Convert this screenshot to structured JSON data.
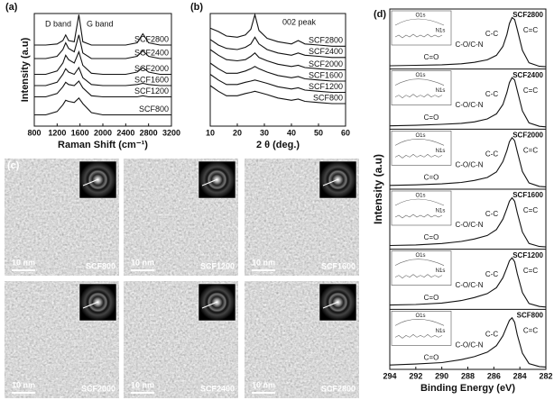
{
  "chart_data": [
    {
      "type": "line",
      "panel_label": "(a)",
      "xlabel": "Raman Shift (cm⁻¹)",
      "ylabel": "Intensity (a.u)",
      "xlim": [
        800,
        3200
      ],
      "xticks": [
        800,
        1200,
        1600,
        2000,
        2400,
        2800,
        3200
      ],
      "ylim": [
        0,
        10
      ],
      "color": "#111111",
      "annotations": [
        "D band",
        "G band"
      ],
      "x": [
        800,
        1000,
        1200,
        1300,
        1350,
        1400,
        1500,
        1580,
        1650,
        1800,
        2000,
        2400,
        2600,
        2700,
        2800,
        3000,
        3200
      ],
      "series": [
        {
          "name": "SCF2800",
          "values": [
            7.2,
            7.2,
            7.3,
            7.6,
            8.1,
            7.6,
            7.5,
            9.9,
            7.5,
            7.2,
            7.2,
            7.2,
            7.4,
            8.2,
            7.4,
            7.2,
            7.2
          ]
        },
        {
          "name": "SCF2400",
          "values": [
            6.0,
            6.0,
            6.2,
            6.8,
            7.4,
            6.9,
            6.6,
            8.1,
            6.5,
            6.0,
            6.0,
            6.0,
            6.2,
            6.7,
            6.2,
            6.0,
            6.0
          ]
        },
        {
          "name": "SCF2000",
          "values": [
            4.6,
            4.6,
            4.9,
            5.6,
            6.3,
            5.9,
            5.6,
            6.6,
            5.4,
            4.7,
            4.6,
            4.6,
            4.8,
            5.2,
            4.8,
            4.6,
            4.6
          ]
        },
        {
          "name": "SCF1600",
          "values": [
            3.6,
            3.6,
            3.9,
            4.6,
            5.1,
            4.8,
            4.6,
            5.2,
            4.3,
            3.7,
            3.6,
            3.6,
            3.7,
            3.8,
            3.7,
            3.6,
            3.6
          ]
        },
        {
          "name": "SCF1200",
          "values": [
            2.6,
            2.6,
            2.9,
            3.5,
            3.9,
            3.7,
            3.6,
            4.0,
            3.4,
            2.7,
            2.6,
            2.6,
            2.6,
            2.7,
            2.6,
            2.6,
            2.6
          ]
        },
        {
          "name": "SCF800",
          "values": [
            1.0,
            1.0,
            1.3,
            1.9,
            2.3,
            2.2,
            2.1,
            2.5,
            2.0,
            1.2,
            1.0,
            1.0,
            1.0,
            1.0,
            1.0,
            1.0,
            1.0
          ]
        }
      ]
    },
    {
      "type": "line",
      "panel_label": "(b)",
      "xlabel": "2 θ (deg.)",
      "xlim": [
        10,
        60
      ],
      "xticks": [
        10,
        20,
        30,
        40,
        50,
        60
      ],
      "ylim": [
        0,
        10
      ],
      "color": "#111111",
      "annotations": [
        "002 peak"
      ],
      "x": [
        10,
        13,
        16,
        20,
        23,
        25,
        26.5,
        28,
        31,
        35,
        40,
        42.5,
        45,
        50,
        55,
        60
      ],
      "series": [
        {
          "name": "SCF2800",
          "values": [
            8.7,
            8.4,
            8.0,
            7.9,
            8.1,
            8.6,
            9.9,
            8.5,
            7.8,
            7.5,
            7.3,
            7.6,
            7.3,
            7.2,
            7.1,
            7.1
          ]
        },
        {
          "name": "SCF2400",
          "values": [
            7.7,
            7.2,
            6.9,
            6.8,
            7.0,
            7.3,
            7.9,
            7.3,
            6.8,
            6.5,
            6.3,
            6.5,
            6.3,
            6.2,
            6.1,
            6.1
          ]
        },
        {
          "name": "SCF2000",
          "values": [
            6.8,
            6.3,
            5.9,
            5.8,
            5.9,
            6.2,
            6.5,
            6.1,
            5.8,
            5.5,
            5.3,
            5.4,
            5.2,
            5.1,
            5.0,
            5.0
          ]
        },
        {
          "name": "SCF1600",
          "values": [
            5.6,
            5.1,
            4.7,
            4.7,
            4.9,
            5.1,
            5.3,
            5.1,
            4.8,
            4.5,
            4.3,
            4.4,
            4.2,
            4.1,
            4.0,
            4.0
          ]
        },
        {
          "name": "SCF1200",
          "values": [
            4.6,
            4.1,
            3.7,
            3.7,
            3.9,
            4.0,
            4.1,
            4.0,
            3.8,
            3.5,
            3.3,
            3.4,
            3.2,
            3.1,
            3.0,
            3.0
          ]
        },
        {
          "name": "SCF800",
          "values": [
            3.6,
            3.1,
            2.7,
            2.7,
            2.9,
            3.0,
            3.1,
            3.0,
            2.8,
            2.5,
            2.3,
            2.4,
            2.2,
            2.1,
            2.0,
            2.0
          ]
        }
      ]
    },
    {
      "type": "xps",
      "panel_label": "(d)",
      "xlabel": "Binding Energy (eV)",
      "ylabel": "Intensity (a.u)",
      "xlim": [
        294,
        282
      ],
      "xticks": [
        294,
        292,
        290,
        288,
        286,
        284,
        282
      ],
      "ylim": [
        0,
        1.1
      ],
      "color": "#111111",
      "x": [
        294,
        292,
        290,
        288.5,
        287.5,
        286.5,
        285.8,
        285.3,
        285,
        284.8,
        284.6,
        284.4,
        284.2,
        283.8,
        283.3,
        282.5,
        282
      ],
      "panels": [
        {
          "name": "SCF2800",
          "peak_labels": [
            "C=C",
            "C-C",
            "C-O/C-N",
            "C=O"
          ],
          "inset_labels": [
            "O1s",
            "N1s"
          ],
          "values": [
            0.03,
            0.04,
            0.05,
            0.07,
            0.1,
            0.15,
            0.24,
            0.42,
            0.66,
            0.88,
            1.0,
            0.96,
            0.76,
            0.34,
            0.09,
            0.02,
            0.01
          ]
        },
        {
          "name": "SCF2400",
          "peak_labels": [
            "C=C",
            "C-C",
            "C-O/C-N",
            "C=O"
          ],
          "inset_labels": [
            "O1s",
            "N1s"
          ],
          "values": [
            0.03,
            0.04,
            0.06,
            0.08,
            0.11,
            0.17,
            0.27,
            0.46,
            0.7,
            0.9,
            1.0,
            0.95,
            0.74,
            0.33,
            0.09,
            0.02,
            0.01
          ]
        },
        {
          "name": "SCF2000",
          "peak_labels": [
            "C=C",
            "C-C",
            "C-O/C-N",
            "C=O"
          ],
          "inset_labels": [
            "O1s",
            "N1s"
          ],
          "values": [
            0.04,
            0.05,
            0.07,
            0.1,
            0.14,
            0.2,
            0.31,
            0.52,
            0.74,
            0.92,
            1.0,
            0.94,
            0.72,
            0.32,
            0.09,
            0.02,
            0.01
          ]
        },
        {
          "name": "SCF1600",
          "peak_labels": [
            "C=C",
            "C-C",
            "C-O/C-N",
            "C=O"
          ],
          "inset_labels": [
            "O1s",
            "N1s"
          ],
          "values": [
            0.04,
            0.05,
            0.08,
            0.12,
            0.17,
            0.24,
            0.36,
            0.57,
            0.78,
            0.93,
            1.0,
            0.93,
            0.7,
            0.31,
            0.08,
            0.02,
            0.01
          ]
        },
        {
          "name": "SCF1200",
          "peak_labels": [
            "C=C",
            "C-C",
            "C-O/C-N",
            "C=O"
          ],
          "inset_labels": [
            "O1s",
            "N1s"
          ],
          "values": [
            0.05,
            0.06,
            0.09,
            0.14,
            0.2,
            0.28,
            0.4,
            0.6,
            0.8,
            0.94,
            1.0,
            0.92,
            0.68,
            0.3,
            0.08,
            0.02,
            0.01
          ]
        },
        {
          "name": "SCF800",
          "peak_labels": [
            "C=C",
            "C-C",
            "C-O/C-N",
            "C=O"
          ],
          "inset_labels": [
            "O1s",
            "N1s"
          ],
          "values": [
            0.05,
            0.07,
            0.1,
            0.16,
            0.22,
            0.31,
            0.44,
            0.64,
            0.83,
            0.95,
            1.0,
            0.91,
            0.66,
            0.29,
            0.08,
            0.02,
            0.01
          ]
        }
      ]
    }
  ],
  "images": {
    "panel_label": "(c)",
    "tiles": [
      {
        "scale_bar": "10 nm",
        "sample": "SCF800"
      },
      {
        "scale_bar": "10 nm",
        "sample": "SCF1200"
      },
      {
        "scale_bar": "10 nm",
        "sample": "SCF1600"
      },
      {
        "scale_bar": "10 nm",
        "sample": "SCF2000"
      },
      {
        "scale_bar": "10 nm",
        "sample": "SCF2400"
      },
      {
        "scale_bar": "10 nm",
        "sample": "SCF2800"
      }
    ]
  }
}
